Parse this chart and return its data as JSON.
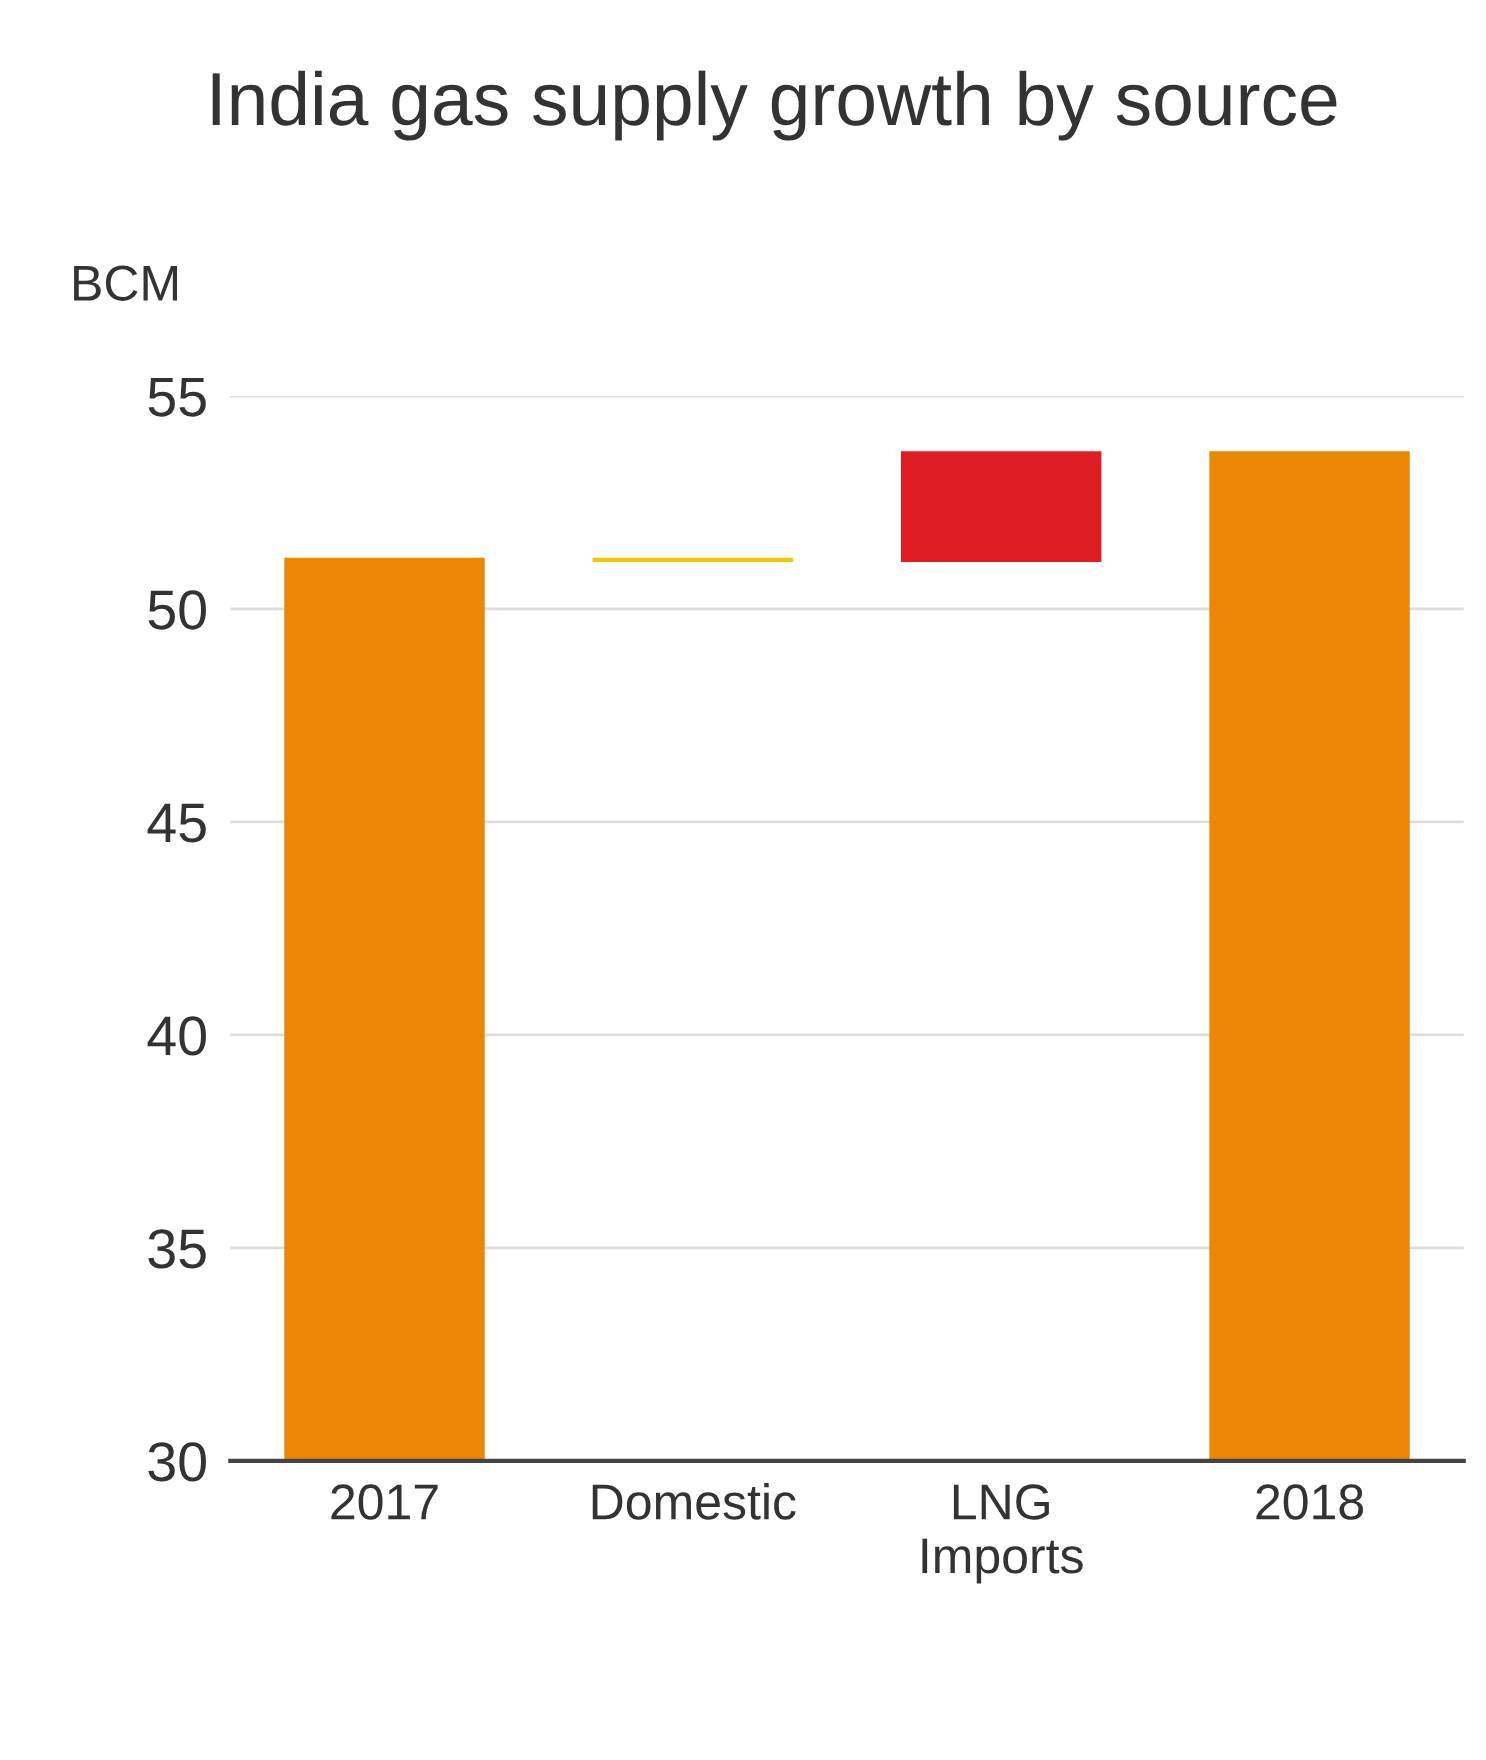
{
  "chart_data": {
    "type": "bar",
    "title": "India gas supply growth by source",
    "ylabel": "BCM",
    "categories": [
      "2017",
      "Domestic",
      "LNG\nImports",
      "2018"
    ],
    "values": [
      51.2,
      -0.1,
      2.6,
      53.7
    ],
    "base": [
      null,
      51.2,
      51.1,
      null
    ],
    "colors": [
      "#eb8705",
      "#f7c600",
      "#de1e22",
      "#eb8705"
    ],
    "ylim": [
      30,
      55
    ],
    "yticks": [
      30,
      35,
      40,
      45,
      50,
      55
    ],
    "grid": "y"
  }
}
